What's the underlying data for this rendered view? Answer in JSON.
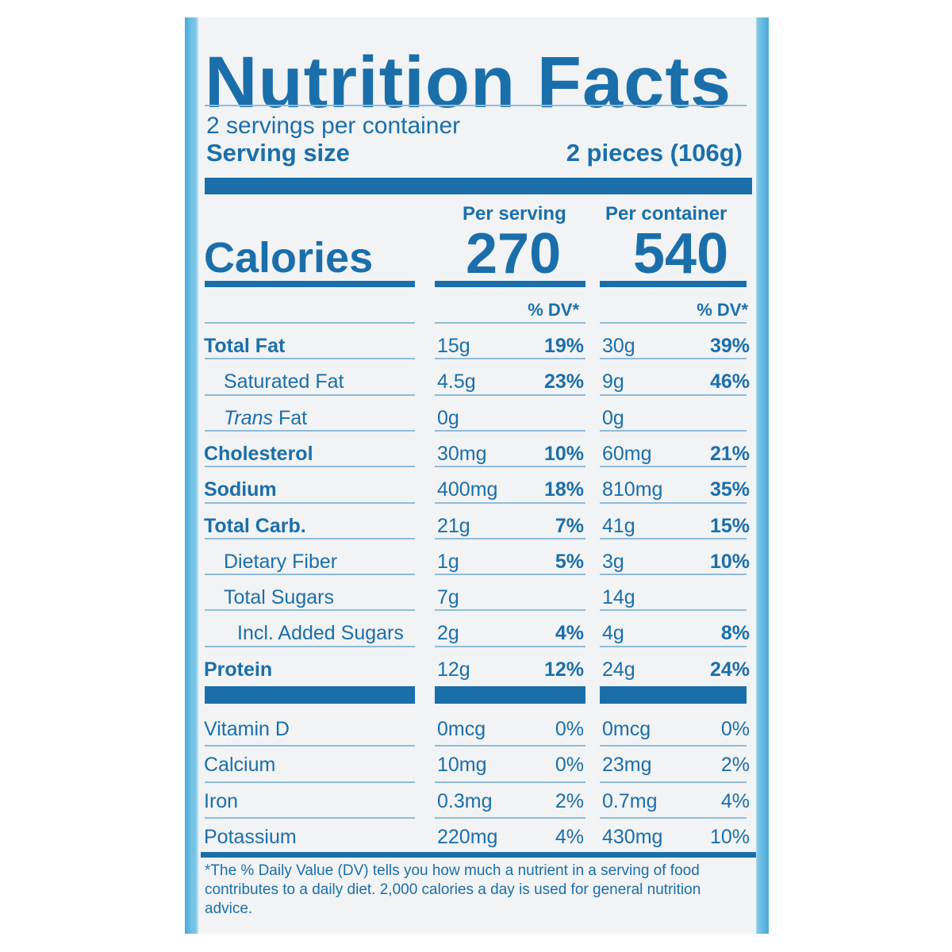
{
  "title": "Nutrition Facts",
  "servings_per_container": "2 servings per container",
  "serving_size": {
    "label": "Serving size",
    "value": "2 pieces (106g)"
  },
  "calories": {
    "label": "Calories",
    "per_serving_label": "Per serving",
    "per_container_label": "Per container",
    "per_serving": "270",
    "per_container": "540"
  },
  "dv_header": "% DV*",
  "nutrients": [
    {
      "name": "Total Fat",
      "bold": true,
      "indent": 0,
      "s_amt": "15g",
      "s_dv": "19%",
      "c_amt": "30g",
      "c_dv": "39%"
    },
    {
      "name": "Saturated Fat",
      "bold": false,
      "indent": 1,
      "s_amt": "4.5g",
      "s_dv": "23%",
      "c_amt": "9g",
      "c_dv": "46%"
    },
    {
      "name_italic": "Trans",
      "name": " Fat",
      "bold": false,
      "indent": 1,
      "s_amt": "0g",
      "s_dv": "",
      "c_amt": "0g",
      "c_dv": ""
    },
    {
      "name": "Cholesterol",
      "bold": true,
      "indent": 0,
      "s_amt": "30mg",
      "s_dv": "10%",
      "c_amt": "60mg",
      "c_dv": "21%"
    },
    {
      "name": "Sodium",
      "bold": true,
      "indent": 0,
      "s_amt": "400mg",
      "s_dv": "18%",
      "c_amt": "810mg",
      "c_dv": "35%"
    },
    {
      "name": "Total Carb.",
      "bold": true,
      "indent": 0,
      "s_amt": "21g",
      "s_dv": "7%",
      "c_amt": "41g",
      "c_dv": "15%"
    },
    {
      "name": "Dietary Fiber",
      "bold": false,
      "indent": 1,
      "s_amt": "1g",
      "s_dv": "5%",
      "c_amt": "3g",
      "c_dv": "10%"
    },
    {
      "name": "Total Sugars",
      "bold": false,
      "indent": 1,
      "s_amt": "7g",
      "s_dv": "",
      "c_amt": "14g",
      "c_dv": ""
    },
    {
      "name": "Incl. Added Sugars",
      "bold": false,
      "indent": 2,
      "s_amt": "2g",
      "s_dv": "4%",
      "c_amt": "4g",
      "c_dv": "8%"
    },
    {
      "name": "Protein",
      "bold": true,
      "indent": 0,
      "s_amt": "12g",
      "s_dv": "12%",
      "c_amt": "24g",
      "c_dv": "24%"
    }
  ],
  "vitamins": [
    {
      "name": "Vitamin D",
      "s_amt": "0mcg",
      "s_dv": "0%",
      "c_amt": "0mcg",
      "c_dv": "0%"
    },
    {
      "name": "Calcium",
      "s_amt": "10mg",
      "s_dv": "0%",
      "c_amt": "23mg",
      "c_dv": "2%"
    },
    {
      "name": "Iron",
      "s_amt": "0.3mg",
      "s_dv": "2%",
      "c_amt": "0.7mg",
      "c_dv": "4%"
    },
    {
      "name": "Potassium",
      "s_amt": "220mg",
      "s_dv": "4%",
      "c_amt": "430mg",
      "c_dv": "10%"
    }
  ],
  "footnote": "*The % Daily Value (DV) tells you how much a nutrient in a serving of food contributes to a daily diet. 2,000 calories a day is used for general nutrition advice."
}
